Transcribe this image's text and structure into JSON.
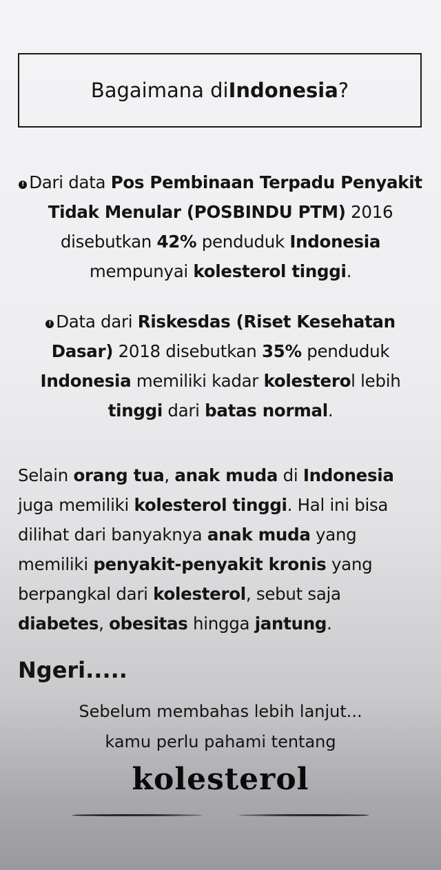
{
  "title": [
    {
      "t": "Bagaimana di "
    },
    {
      "t": "Indonesia",
      "b": true
    },
    {
      "t": "?"
    }
  ],
  "bullet_icon": "exclamation-circle-icon",
  "bullets": [
    [
      {
        "t": "Dari data "
      },
      {
        "t": "Pos Pembinaan Terpadu Penyakit Tidak Menular (POSBINDU PTM)",
        "b": true
      },
      {
        "t": " 2016 disebutkan "
      },
      {
        "t": "42%",
        "b": true
      },
      {
        "t": " penduduk "
      },
      {
        "t": "Indonesia",
        "b": true
      },
      {
        "t": " mempunyai "
      },
      {
        "t": "kolesterol tinggi",
        "b": true
      },
      {
        "t": "."
      }
    ],
    [
      {
        "t": "Data dari "
      },
      {
        "t": "Riskesdas (Riset Kesehatan Dasar)",
        "b": true
      },
      {
        "t": " 2018 disebutkan "
      },
      {
        "t": "35%",
        "b": true
      },
      {
        "t": " penduduk "
      },
      {
        "t": "Indonesia",
        "b": true
      },
      {
        "t": " memiliki kadar "
      },
      {
        "t": "kolestero",
        "b": true
      },
      {
        "t": "l lebih "
      },
      {
        "t": "tinggi",
        "b": true
      },
      {
        "t": " dari "
      },
      {
        "t": "batas normal",
        "b": true
      },
      {
        "t": "."
      }
    ]
  ],
  "paragraph": [
    {
      "t": "Selain "
    },
    {
      "t": "orang tua",
      "b": true
    },
    {
      "t": ", "
    },
    {
      "t": "anak muda",
      "b": true
    },
    {
      "t": " di "
    },
    {
      "t": "Indonesia",
      "b": true
    },
    {
      "t": " juga memiliki "
    },
    {
      "t": "kolesterol tinggi",
      "b": true
    },
    {
      "t": ". Hal ini bisa dilihat dari banyaknya "
    },
    {
      "t": "anak muda",
      "b": true
    },
    {
      "t": " yang memiliki "
    },
    {
      "t": "penyakit-penyakit kronis",
      "b": true
    },
    {
      "t": " yang berpangkal dari "
    },
    {
      "t": "kolesterol",
      "b": true
    },
    {
      "t": ", sebut saja "
    },
    {
      "t": "diabetes",
      "b": true
    },
    {
      "t": ", "
    },
    {
      "t": "obesitas",
      "b": true
    },
    {
      "t": " hingga "
    },
    {
      "t": "jantung",
      "b": true
    },
    {
      "t": "."
    }
  ],
  "exclaim": "Ngeri.....",
  "subtitle_1": "Sebelum membahas lebih lanjut...",
  "subtitle_2": "kamu perlu pahami tentang",
  "keyword": "kolesterol"
}
